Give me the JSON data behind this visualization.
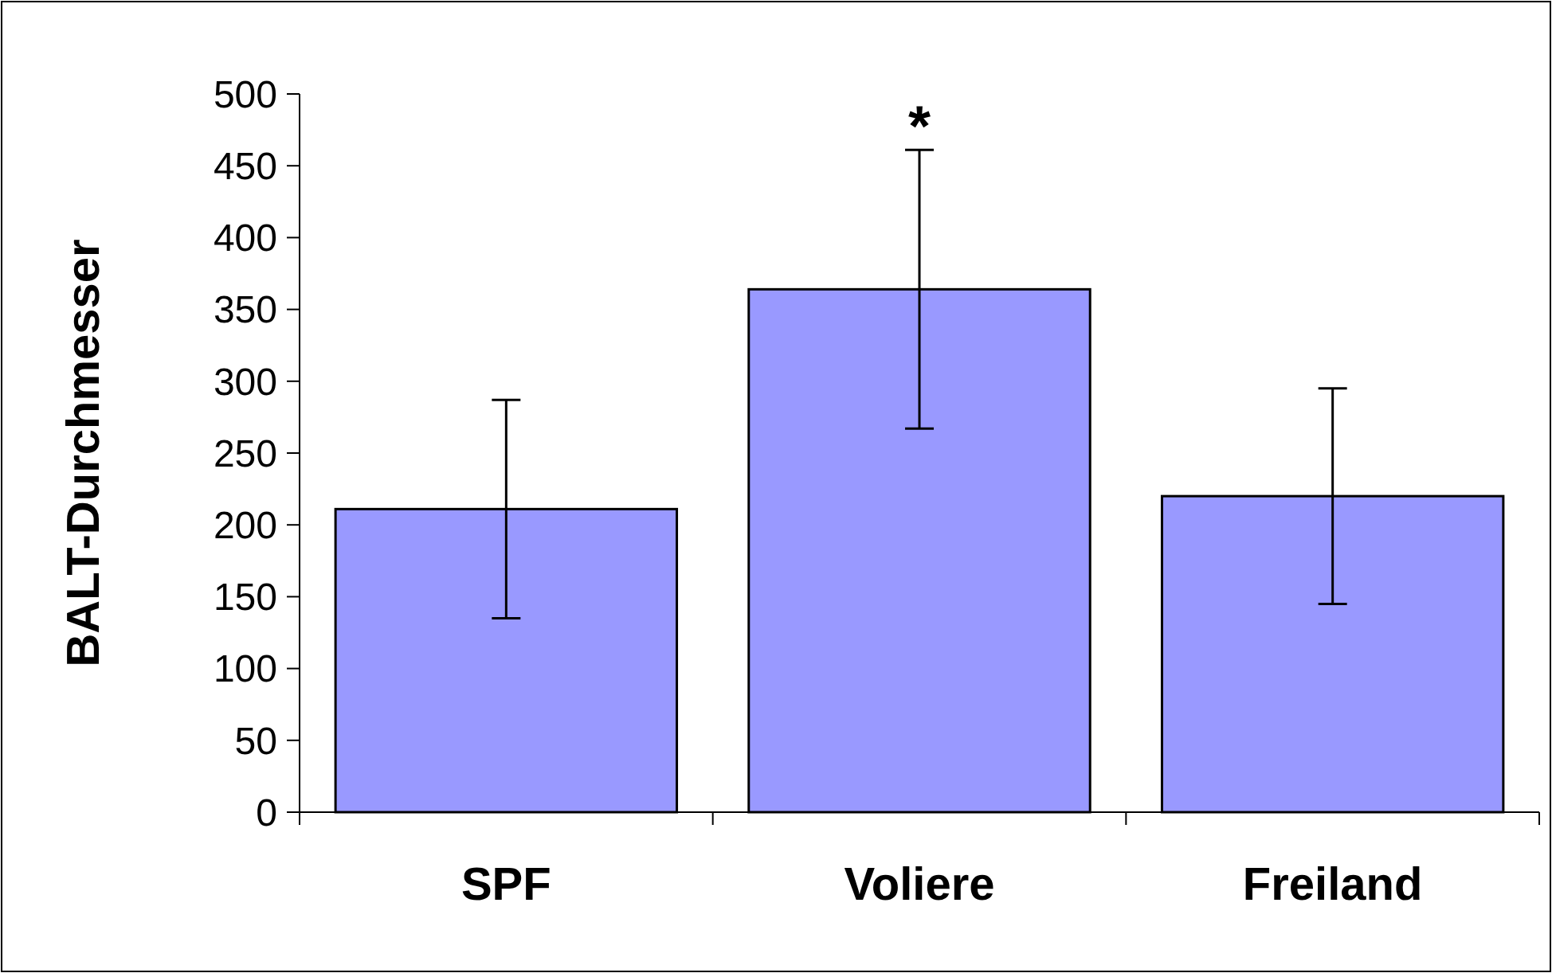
{
  "chart_data": {
    "type": "bar",
    "ylabel": "BALT-Durchmesser",
    "categories": [
      "SPF",
      "Voliere",
      "Freiland"
    ],
    "values": [
      211,
      364,
      220
    ],
    "errors": [
      76,
      97,
      75
    ],
    "color": "#9999ff",
    "ylim": [
      0,
      500
    ],
    "yticks": [
      0,
      50,
      100,
      150,
      200,
      250,
      300,
      350,
      400,
      450,
      500
    ],
    "grid": false,
    "annotations": [
      {
        "text": "*",
        "x": "Voliere",
        "y": 462
      }
    ]
  }
}
